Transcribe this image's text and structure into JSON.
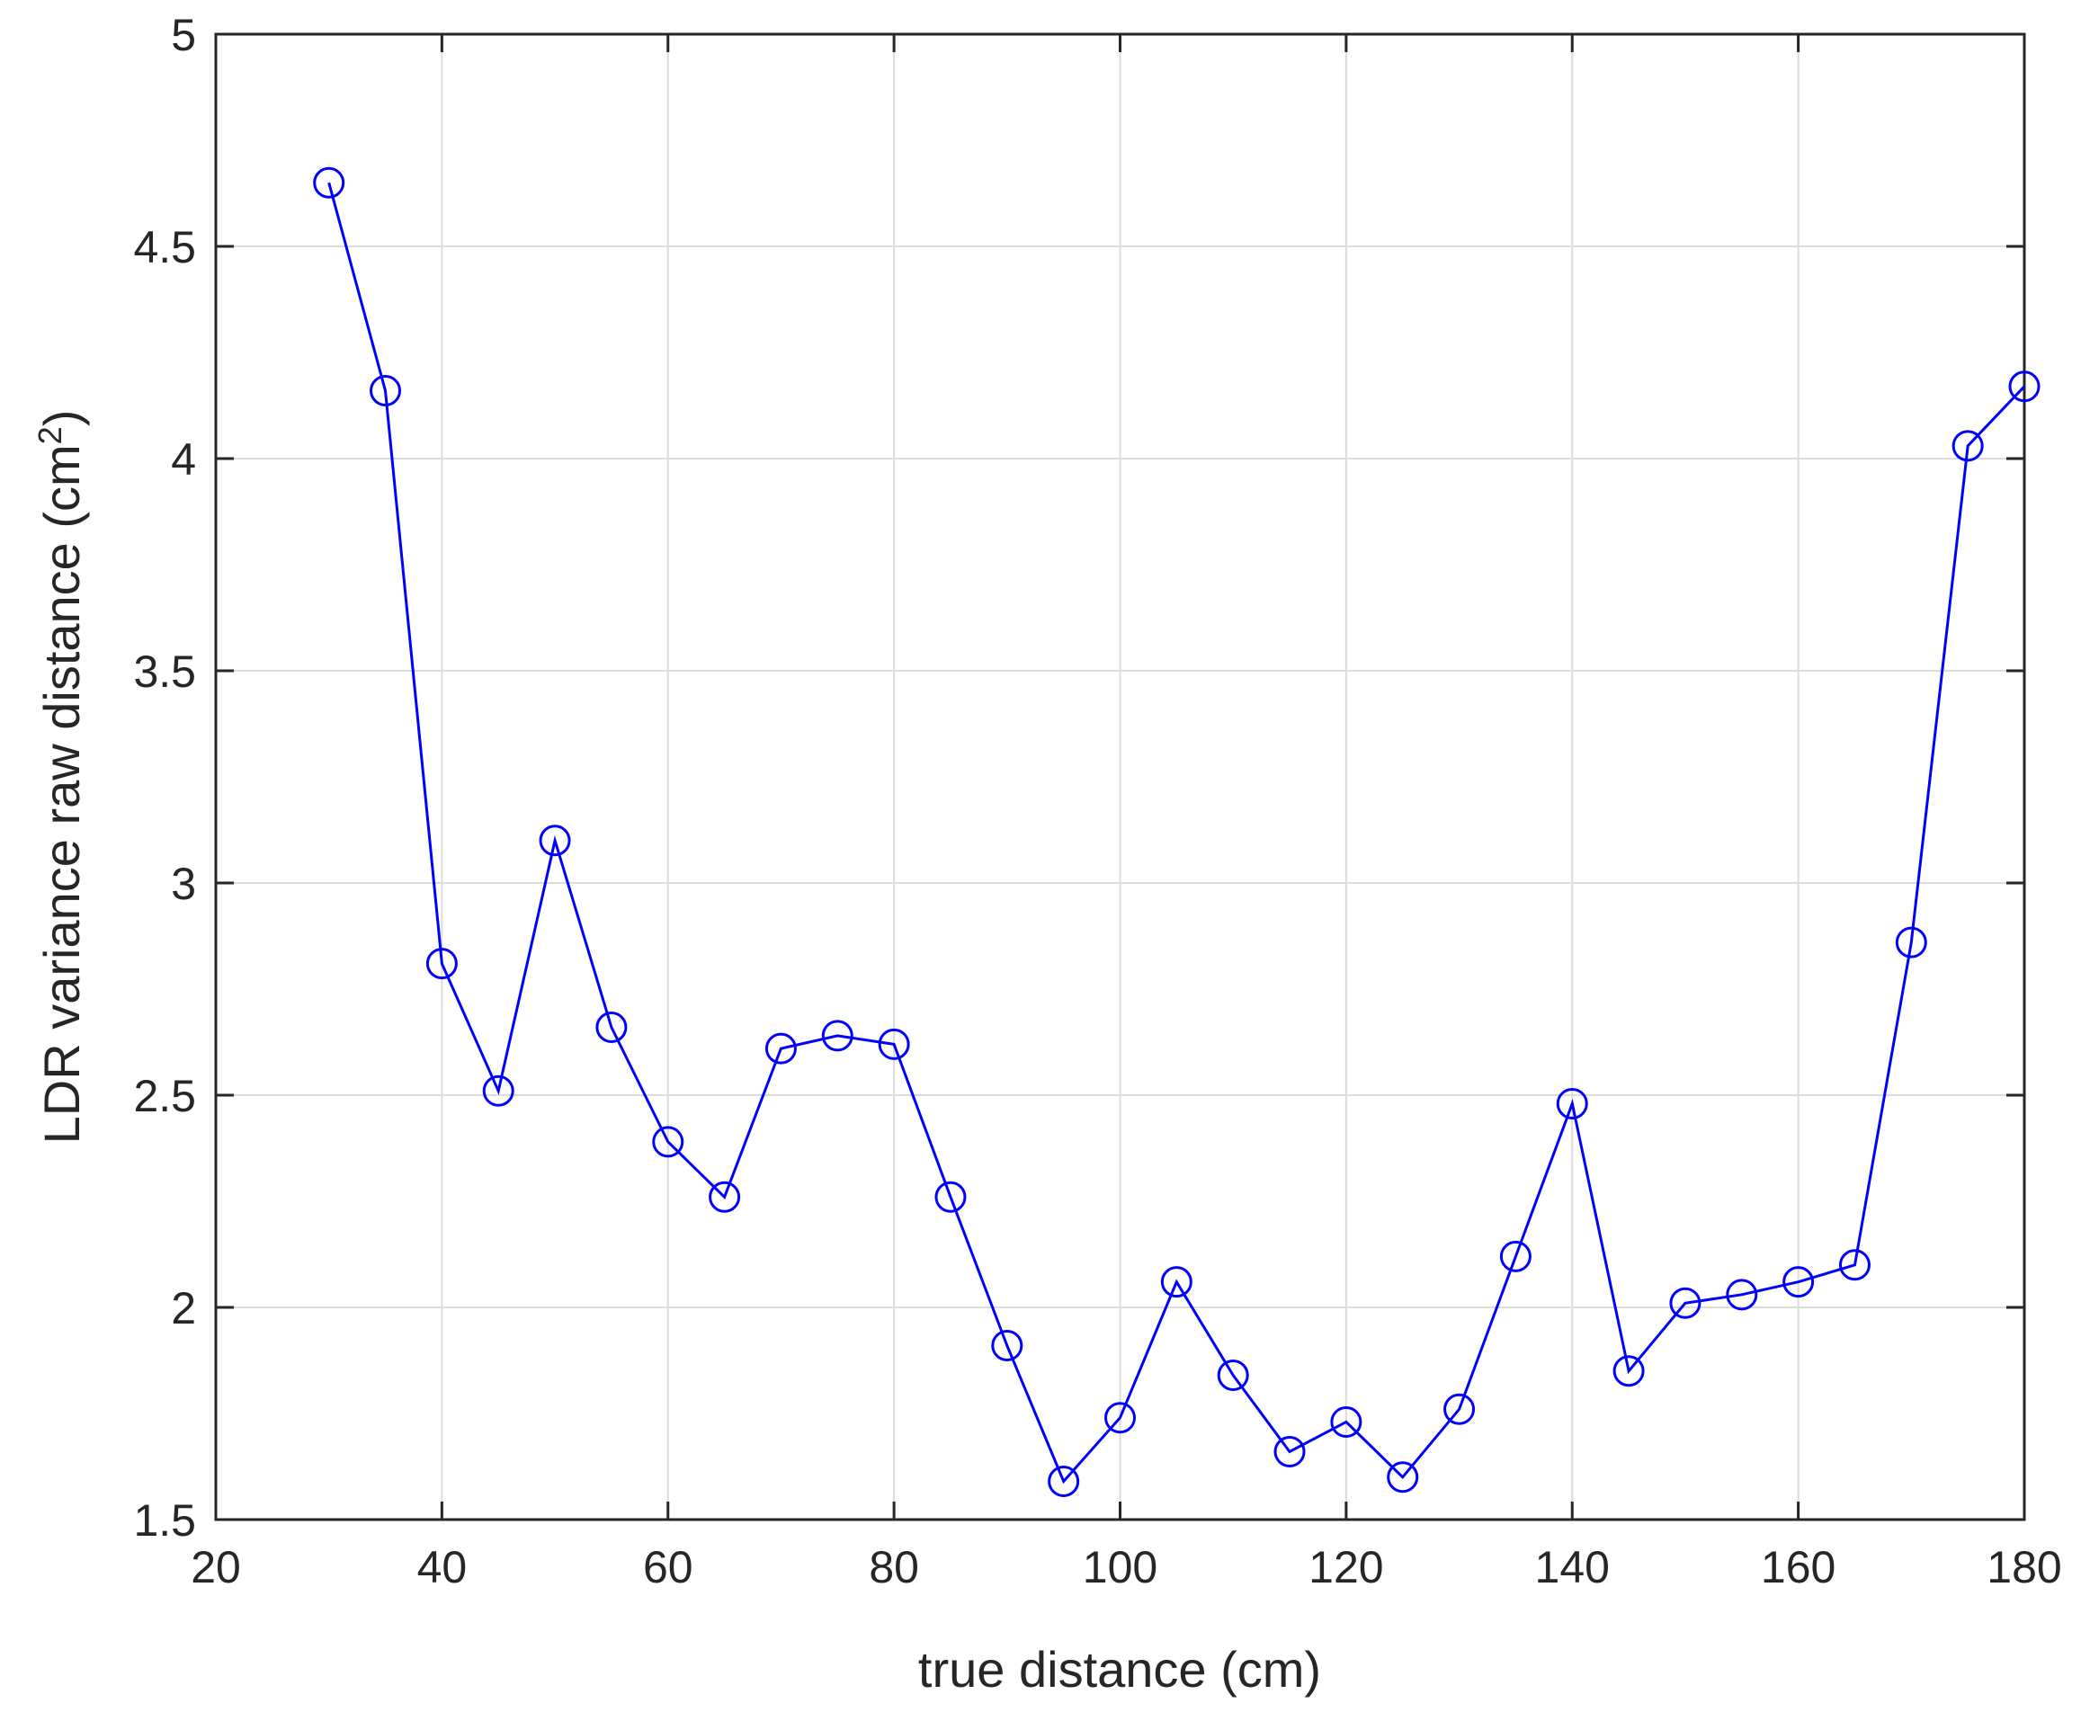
{
  "chart_data": {
    "type": "line",
    "xlabel": "true distance (cm)",
    "ylabel": {
      "prefix": "LDR variance raw distance (cm",
      "superscript": "2",
      "suffix": ")"
    },
    "xlim": [
      20,
      180
    ],
    "ylim": [
      1.5,
      5
    ],
    "x_ticks": [
      20,
      40,
      60,
      80,
      100,
      120,
      140,
      160,
      180
    ],
    "x_tick_labels": [
      "20",
      "40",
      "60",
      "80",
      "100",
      "120",
      "140",
      "160",
      "180"
    ],
    "y_ticks": [
      1.5,
      2,
      2.5,
      3,
      3.5,
      4,
      4.5,
      5
    ],
    "y_tick_labels": [
      "1.5",
      "2",
      "2.5",
      "3",
      "3.5",
      "4",
      "4.5",
      "5"
    ],
    "grid": true,
    "series": [
      {
        "color": "#0000ff",
        "marker": "circle",
        "x": [
          30,
          35,
          40,
          45,
          50,
          55,
          60,
          65,
          70,
          75,
          80,
          85,
          90,
          95,
          100,
          105,
          110,
          115,
          120,
          125,
          130,
          135,
          140,
          145,
          150,
          155,
          160,
          165,
          170,
          175,
          180
        ],
        "y": [
          4.65,
          4.16,
          2.81,
          2.51,
          3.1,
          2.66,
          2.39,
          2.26,
          2.61,
          2.64,
          2.62,
          2.26,
          1.91,
          1.59,
          1.74,
          2.06,
          1.84,
          1.66,
          1.73,
          1.6,
          1.76,
          2.12,
          2.48,
          1.85,
          2.01,
          2.03,
          2.06,
          2.1,
          2.86,
          4.03,
          4.17
        ]
      }
    ]
  }
}
